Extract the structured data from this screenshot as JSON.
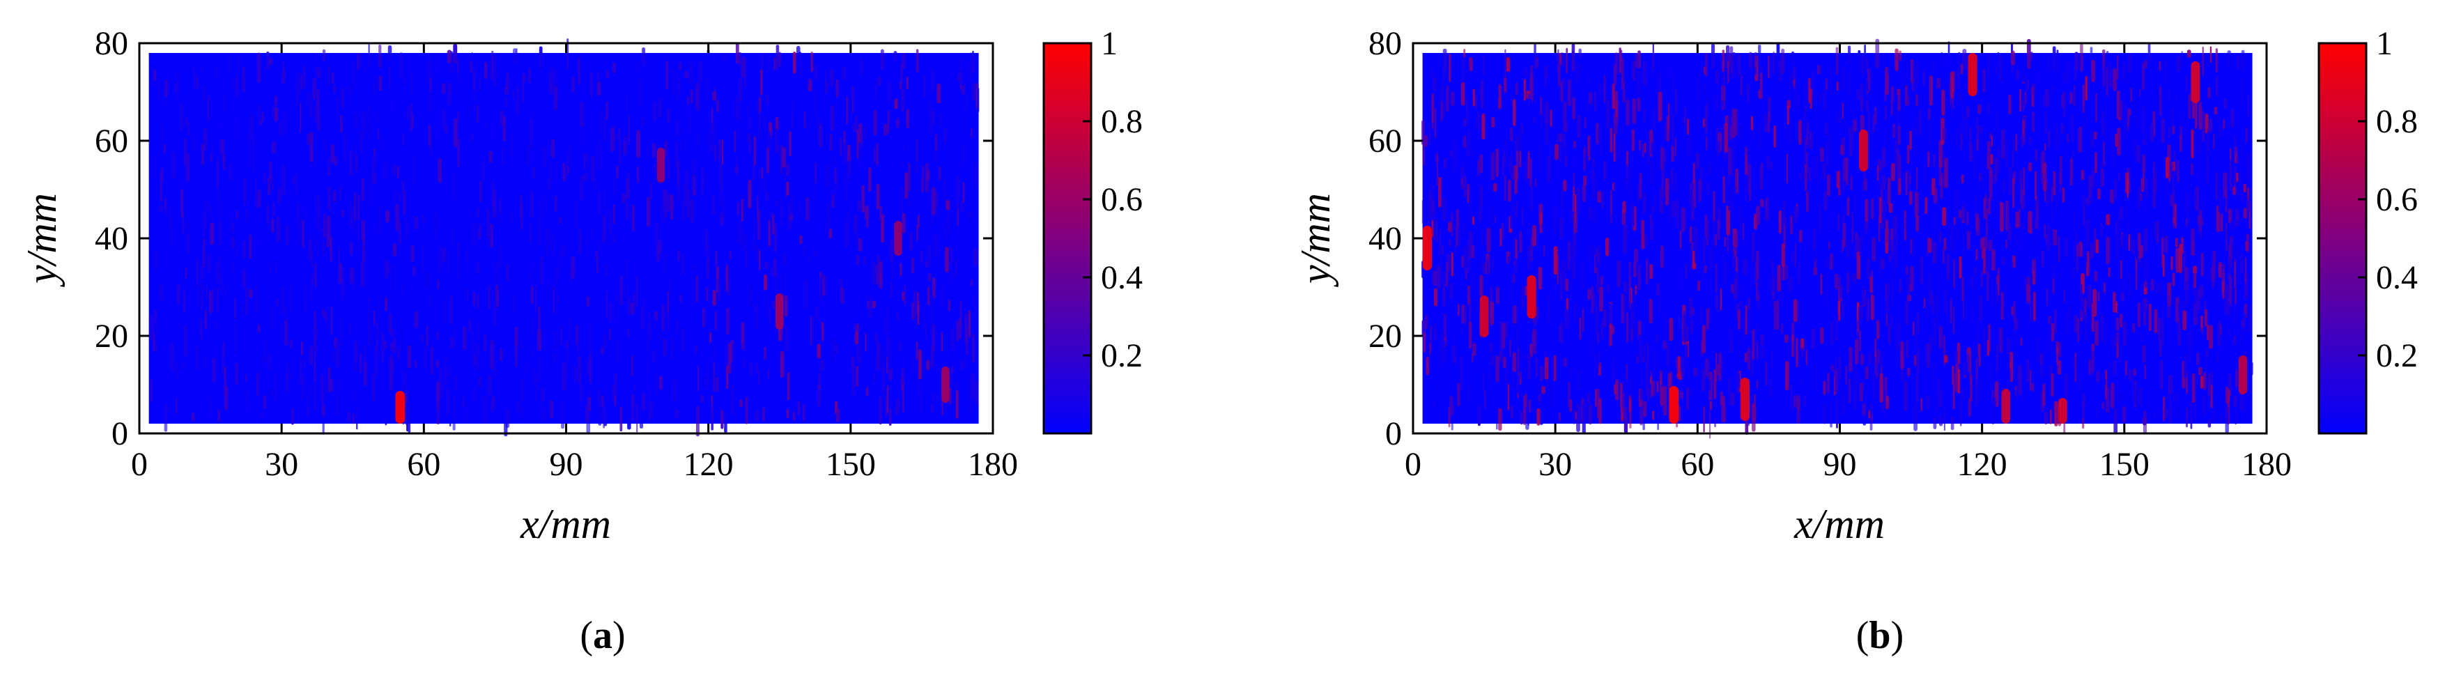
{
  "figure": {
    "colormap": {
      "low": "#0000ff",
      "high": "#ff0000"
    }
  },
  "chart_data": [
    {
      "type": "heatmap",
      "panel_label": "a",
      "xlabel": "x/mm",
      "ylabel": "y/mm",
      "xlim": [
        0,
        180
      ],
      "ylim": [
        0,
        80
      ],
      "x_ticks": [
        0,
        30,
        60,
        90,
        120,
        150,
        180
      ],
      "y_ticks": [
        0,
        20,
        40,
        60,
        80
      ],
      "colorbar": {
        "range": [
          0,
          1
        ],
        "ticks": [
          0.2,
          0.4,
          0.6,
          0.8,
          1
        ],
        "tick_labels": [
          "0.2",
          "0.4",
          "0.6",
          "0.8",
          "1"
        ]
      },
      "data_extent": {
        "x": [
          2,
          177
        ],
        "y": [
          2,
          78
        ]
      },
      "grid": false,
      "intensity_note_level": 0.15,
      "hotspots": [
        {
          "x": 55,
          "y": 4,
          "value": 0.95
        },
        {
          "x": 110,
          "y": 55,
          "value": 0.55
        },
        {
          "x": 135,
          "y": 25,
          "value": 0.6
        },
        {
          "x": 160,
          "y": 40,
          "value": 0.55
        },
        {
          "x": 170,
          "y": 10,
          "value": 0.6
        }
      ]
    },
    {
      "type": "heatmap",
      "panel_label": "b",
      "xlabel": "x/mm",
      "ylabel": "y/mm",
      "xlim": [
        0,
        180
      ],
      "ylim": [
        0,
        80
      ],
      "x_ticks": [
        0,
        30,
        60,
        90,
        120,
        150,
        180
      ],
      "y_ticks": [
        0,
        20,
        40,
        60,
        80
      ],
      "colorbar": {
        "range": [
          0,
          1
        ],
        "ticks": [
          0.2,
          0.4,
          0.6,
          0.8,
          1
        ],
        "tick_labels": [
          "0.2",
          "0.4",
          "0.6",
          "0.8",
          "1"
        ]
      },
      "data_extent": {
        "x": [
          2,
          177
        ],
        "y": [
          2,
          78
        ]
      },
      "grid": false,
      "intensity_note_level": 0.3,
      "hotspots": [
        {
          "x": 3,
          "y": 38,
          "value": 0.9
        },
        {
          "x": 15,
          "y": 24,
          "value": 0.8
        },
        {
          "x": 25,
          "y": 28,
          "value": 0.85
        },
        {
          "x": 55,
          "y": 5,
          "value": 0.95
        },
        {
          "x": 70,
          "y": 7,
          "value": 0.85
        },
        {
          "x": 95,
          "y": 58,
          "value": 0.8
        },
        {
          "x": 118,
          "y": 77,
          "value": 0.85
        },
        {
          "x": 125,
          "y": 5,
          "value": 0.75
        },
        {
          "x": 137,
          "y": 3,
          "value": 0.8
        },
        {
          "x": 165,
          "y": 72,
          "value": 0.8
        },
        {
          "x": 175,
          "y": 12,
          "value": 0.7
        }
      ]
    }
  ]
}
